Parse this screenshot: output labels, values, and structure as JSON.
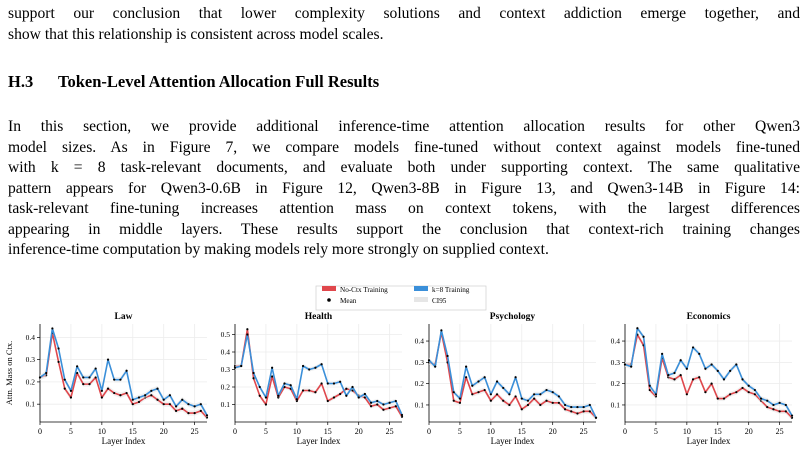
{
  "paragraph1": {
    "lines": [
      "support our conclusion that lower complexity solutions and context addiction emerge together, and",
      "show that this relationship is consistent across model scales."
    ]
  },
  "section": {
    "number": "H.3",
    "title": "Token-Level Attention Allocation Full Results"
  },
  "paragraph2": {
    "lines": [
      "In this section, we provide additional inference-time attention allocation results for other Qwen3",
      "model sizes. As in Figure 7, we compare models fine-tuned without context against models fine-tuned",
      "with k = 8 task-relevant documents, and evaluate both under supporting context. The same qualitative",
      "pattern appears for Qwen3-0.6B in Figure 12, Qwen3-8B in Figure 13, and Qwen3-14B in Figure 14:",
      "task-relevant fine-tuning increases attention mass on context tokens, with the largest differences",
      "appearing in middle layers. These results support the conclusion that context-rich training changes",
      "inference-time computation by making models rely more strongly on supplied context."
    ]
  },
  "legend": {
    "items": [
      {
        "label": "No-Ctx Training",
        "color": "#e0474c",
        "kind": "bar"
      },
      {
        "label": "k=8 Training",
        "color": "#3a8fd9",
        "kind": "bar"
      },
      {
        "label": "Mean",
        "color": "#000000",
        "kind": "dot"
      },
      {
        "label": "CI95",
        "color": "#e6e6e6",
        "kind": "bar"
      }
    ]
  },
  "chart_data": [
    {
      "type": "line",
      "title": "Law",
      "xlabel": "Layer Index",
      "ylabel": "Attn. Mass on Ctx.",
      "xlim": [
        0,
        27
      ],
      "ylim": [
        0.02,
        0.46
      ],
      "xticks": [
        0,
        5,
        10,
        15,
        20,
        25
      ],
      "yticks": [
        0.1,
        0.2,
        0.3,
        0.4
      ],
      "grid": true,
      "series": [
        {
          "name": "No-Ctx Training",
          "color": "#e0474c",
          "values": [
            0.22,
            0.23,
            0.42,
            0.29,
            0.17,
            0.13,
            0.24,
            0.19,
            0.19,
            0.22,
            0.13,
            0.17,
            0.15,
            0.14,
            0.15,
            0.1,
            0.11,
            0.13,
            0.14,
            0.12,
            0.1,
            0.1,
            0.07,
            0.08,
            0.06,
            0.06,
            0.07,
            0.04
          ]
        },
        {
          "name": "k=8 Training",
          "color": "#3a8fd9",
          "values": [
            0.22,
            0.24,
            0.44,
            0.35,
            0.21,
            0.16,
            0.27,
            0.22,
            0.22,
            0.26,
            0.16,
            0.3,
            0.21,
            0.21,
            0.25,
            0.12,
            0.13,
            0.14,
            0.16,
            0.17,
            0.12,
            0.14,
            0.09,
            0.12,
            0.1,
            0.09,
            0.1,
            0.05
          ]
        }
      ]
    },
    {
      "type": "line",
      "title": "Health",
      "xlabel": "Layer Index",
      "ylabel": "",
      "xlim": [
        0,
        27
      ],
      "ylim": [
        0.0,
        0.56
      ],
      "xticks": [
        0,
        5,
        10,
        15,
        20,
        25
      ],
      "yticks": [
        0.1,
        0.2,
        0.3,
        0.4,
        0.5
      ],
      "grid": true,
      "series": [
        {
          "name": "No-Ctx Training",
          "color": "#e0474c",
          "values": [
            0.32,
            0.32,
            0.53,
            0.25,
            0.15,
            0.1,
            0.26,
            0.14,
            0.2,
            0.19,
            0.12,
            0.18,
            0.18,
            0.17,
            0.22,
            0.12,
            0.14,
            0.16,
            0.19,
            0.18,
            0.15,
            0.14,
            0.09,
            0.1,
            0.07,
            0.08,
            0.09,
            0.03
          ]
        },
        {
          "name": "k=8 Training",
          "color": "#3a8fd9",
          "values": [
            0.31,
            0.32,
            0.5,
            0.28,
            0.2,
            0.14,
            0.31,
            0.15,
            0.22,
            0.21,
            0.13,
            0.32,
            0.3,
            0.31,
            0.33,
            0.22,
            0.22,
            0.23,
            0.15,
            0.2,
            0.14,
            0.16,
            0.11,
            0.12,
            0.1,
            0.11,
            0.12,
            0.04
          ]
        }
      ]
    },
    {
      "type": "line",
      "title": "Psychology",
      "xlabel": "Layer Index",
      "ylabel": "",
      "xlim": [
        0,
        27
      ],
      "ylim": [
        0.02,
        0.48
      ],
      "xticks": [
        0,
        5,
        10,
        15,
        20,
        25
      ],
      "yticks": [
        0.1,
        0.2,
        0.3,
        0.4
      ],
      "grid": true,
      "series": [
        {
          "name": "No-Ctx Training",
          "color": "#e0474c",
          "values": [
            0.3,
            0.29,
            0.44,
            0.3,
            0.12,
            0.11,
            0.23,
            0.15,
            0.16,
            0.17,
            0.12,
            0.15,
            0.12,
            0.1,
            0.14,
            0.08,
            0.1,
            0.13,
            0.1,
            0.12,
            0.11,
            0.11,
            0.08,
            0.07,
            0.06,
            0.07,
            0.07,
            0.04
          ]
        },
        {
          "name": "k=8 Training",
          "color": "#3a8fd9",
          "values": [
            0.31,
            0.28,
            0.45,
            0.33,
            0.16,
            0.13,
            0.28,
            0.19,
            0.21,
            0.23,
            0.15,
            0.21,
            0.18,
            0.15,
            0.23,
            0.13,
            0.12,
            0.15,
            0.15,
            0.17,
            0.16,
            0.14,
            0.1,
            0.09,
            0.09,
            0.09,
            0.1,
            0.04
          ]
        }
      ]
    },
    {
      "type": "line",
      "title": "Economics",
      "xlabel": "Layer Index",
      "ylabel": "",
      "xlim": [
        0,
        27
      ],
      "ylim": [
        0.02,
        0.48
      ],
      "xticks": [
        0,
        5,
        10,
        15,
        20,
        25
      ],
      "yticks": [
        0.1,
        0.2,
        0.3,
        0.4
      ],
      "grid": true,
      "series": [
        {
          "name": "No-Ctx Training",
          "color": "#e0474c",
          "values": [
            0.29,
            0.29,
            0.43,
            0.38,
            0.17,
            0.14,
            0.32,
            0.23,
            0.22,
            0.24,
            0.15,
            0.22,
            0.23,
            0.16,
            0.2,
            0.13,
            0.13,
            0.15,
            0.16,
            0.18,
            0.16,
            0.15,
            0.12,
            0.09,
            0.08,
            0.07,
            0.07,
            0.04
          ]
        },
        {
          "name": "k=8 Training",
          "color": "#3a8fd9",
          "values": [
            0.29,
            0.28,
            0.46,
            0.42,
            0.19,
            0.15,
            0.34,
            0.24,
            0.25,
            0.31,
            0.27,
            0.37,
            0.34,
            0.27,
            0.29,
            0.26,
            0.22,
            0.26,
            0.29,
            0.22,
            0.19,
            0.17,
            0.13,
            0.12,
            0.1,
            0.11,
            0.1,
            0.05
          ]
        }
      ]
    }
  ]
}
